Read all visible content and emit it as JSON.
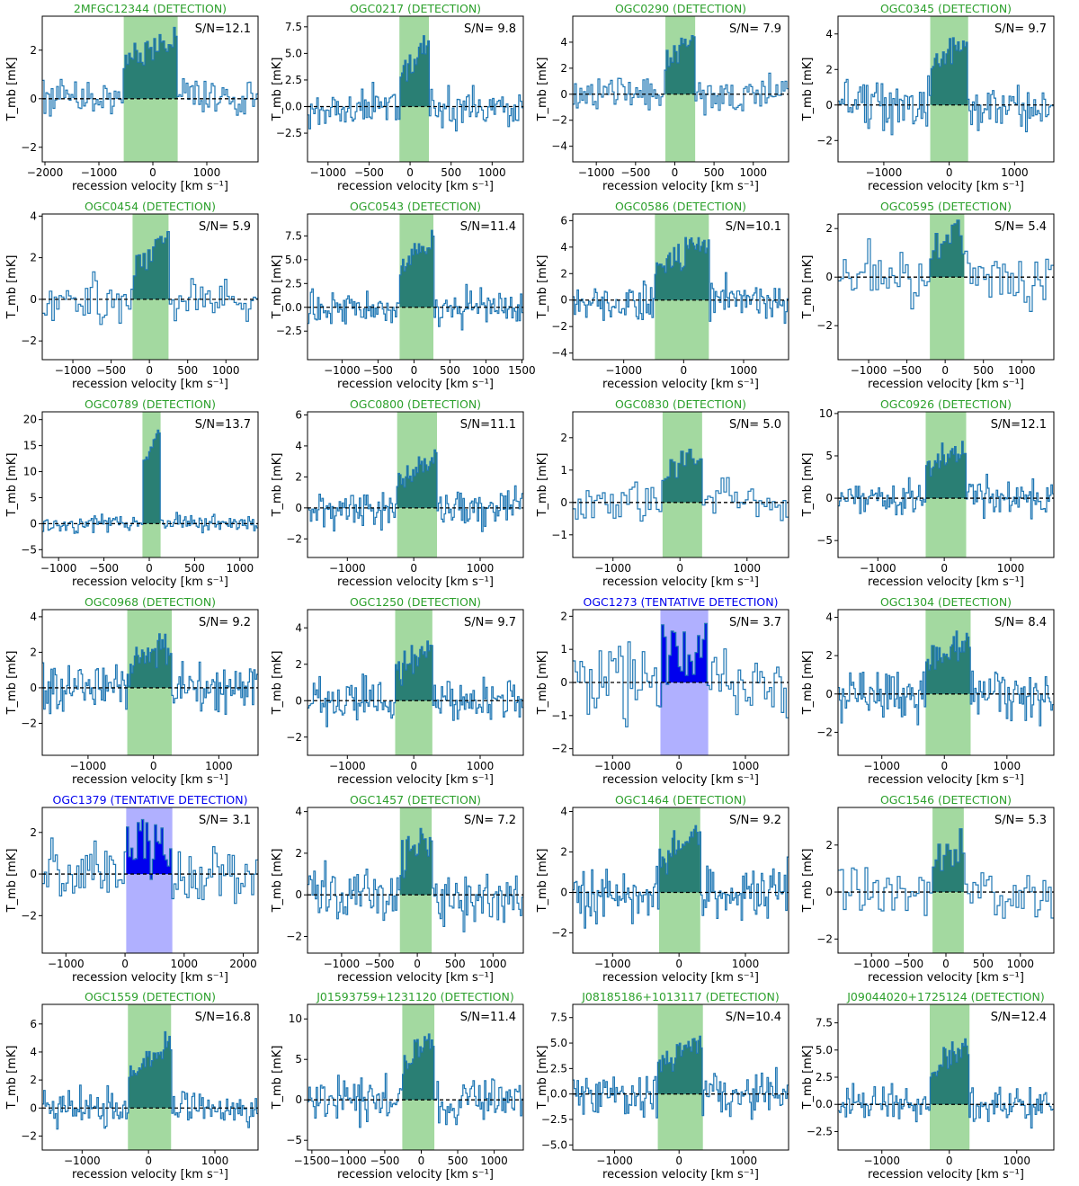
{
  "figure": {
    "axis_ylabel": "T_mb [mK]",
    "axis_xlabel": "recession velocity [km s⁻¹]",
    "colors": {
      "detection_title": "#2ca02c",
      "tentative_title": "#0000ee",
      "detection_window": "#a3d9a0",
      "tentative_window": "#b0b0ff",
      "spectrum": "#1f77b4",
      "detection_fill": "#2a7f74",
      "tentative_fill": "#0000ee",
      "baseline": "#000000"
    }
  },
  "chart_data": [
    {
      "type": "line",
      "title": "2MFGC12344 (DETECTION)",
      "status": "detection",
      "sn_label": "S/N=12.1",
      "xlim": [
        -2050,
        1950
      ],
      "ylim": [
        -2.6,
        3.4
      ],
      "xticks": [
        -2000,
        -1000,
        0,
        1000
      ],
      "yticks": [
        -2,
        0,
        2
      ],
      "window": [
        -540,
        460
      ],
      "peak": 2.6,
      "rms": 0.65,
      "nchan": 120,
      "seed": 11
    },
    {
      "type": "line",
      "title": "OGC0217 (DETECTION)",
      "status": "detection",
      "sn_label": "S/N= 9.8",
      "xlim": [
        -1250,
        1380
      ],
      "ylim": [
        -5.2,
        8.5
      ],
      "xticks": [
        -1000,
        -500,
        0,
        500,
        1000
      ],
      "yticks": [
        -2.5,
        0.0,
        2.5,
        5.0,
        7.5
      ],
      "window": [
        -130,
        230
      ],
      "peak": 6.2,
      "rms": 1.5,
      "nchan": 140,
      "seed": 12
    },
    {
      "type": "line",
      "title": "OGC0290 (DETECTION)",
      "status": "detection",
      "sn_label": "S/N= 7.9",
      "xlim": [
        -1300,
        1450
      ],
      "ylim": [
        -5.2,
        6.0
      ],
      "xticks": [
        -1000,
        -500,
        0,
        500,
        1000
      ],
      "yticks": [
        -4,
        -2,
        0,
        2,
        4
      ],
      "window": [
        -120,
        260
      ],
      "peak": 4.5,
      "rms": 1.1,
      "nchan": 120,
      "seed": 13
    },
    {
      "type": "line",
      "title": "OGC0345 (DETECTION)",
      "status": "detection",
      "sn_label": "S/N= 9.7",
      "xlim": [
        -1700,
        1600
      ],
      "ylim": [
        -3.2,
        5.0
      ],
      "xticks": [
        -1000,
        0,
        1000
      ],
      "yticks": [
        -2,
        0,
        2,
        4
      ],
      "window": [
        -290,
        290
      ],
      "peak": 3.8,
      "rms": 1.0,
      "nchan": 130,
      "seed": 14
    },
    {
      "type": "line",
      "title": "OGC0454 (DETECTION)",
      "status": "detection",
      "sn_label": "S/N= 5.9",
      "xlim": [
        -1400,
        1420
      ],
      "ylim": [
        -2.9,
        4.1
      ],
      "xticks": [
        -1000,
        -500,
        0,
        500,
        1000
      ],
      "yticks": [
        -2,
        0,
        2,
        4
      ],
      "window": [
        -220,
        250
      ],
      "peak": 3.0,
      "rms": 0.9,
      "nchan": 90,
      "seed": 21
    },
    {
      "type": "line",
      "title": "OGC0543 (DETECTION)",
      "status": "detection",
      "sn_label": "S/N=11.4",
      "xlim": [
        -1480,
        1520
      ],
      "ylim": [
        -5.5,
        9.8
      ],
      "xticks": [
        -1000,
        -500,
        0,
        500,
        1000,
        1500
      ],
      "yticks": [
        -2.5,
        0.0,
        2.5,
        5.0,
        7.5
      ],
      "window": [
        -200,
        270
      ],
      "peak": 7.2,
      "rms": 1.5,
      "nchan": 150,
      "seed": 22
    },
    {
      "type": "line",
      "title": "OGC0586 (DETECTION)",
      "status": "detection",
      "sn_label": "S/N=10.1",
      "xlim": [
        -1850,
        1750
      ],
      "ylim": [
        -4.5,
        6.5
      ],
      "xticks": [
        -1000,
        0,
        1000
      ],
      "yticks": [
        -4,
        -2,
        0,
        2,
        4,
        6
      ],
      "window": [
        -480,
        420
      ],
      "peak": 4.4,
      "rms": 1.2,
      "nchan": 150,
      "seed": 23
    },
    {
      "type": "line",
      "title": "OGC0595 (DETECTION)",
      "status": "detection",
      "sn_label": "S/N= 5.4",
      "xlim": [
        -1400,
        1420
      ],
      "ylim": [
        -3.4,
        2.6
      ],
      "xticks": [
        -1000,
        -500,
        0,
        500,
        1000
      ],
      "yticks": [
        -2,
        0,
        2
      ],
      "window": [
        -200,
        250
      ],
      "peak": 1.9,
      "rms": 0.9,
      "nchan": 80,
      "seed": 24
    },
    {
      "type": "line",
      "title": "OGC0789 (DETECTION)",
      "status": "detection",
      "sn_label": "S/N=13.7",
      "xlim": [
        -1180,
        1200
      ],
      "ylim": [
        -6.5,
        21.5
      ],
      "xticks": [
        -1000,
        -500,
        0,
        500,
        1000
      ],
      "yticks": [
        -5,
        0,
        5,
        10,
        15,
        20
      ],
      "window": [
        -75,
        125
      ],
      "peak": 19.0,
      "rms": 1.3,
      "nchan": 150,
      "seed": 31
    },
    {
      "type": "line",
      "title": "OGC0800 (DETECTION)",
      "status": "detection",
      "sn_label": "S/N=11.1",
      "xlim": [
        -1600,
        1650
      ],
      "ylim": [
        -3.2,
        6.2
      ],
      "xticks": [
        -1000,
        0,
        1000
      ],
      "yticks": [
        -2,
        0,
        2,
        4,
        6
      ],
      "window": [
        -250,
        350
      ],
      "peak": 3.4,
      "rms": 1.0,
      "nchan": 150,
      "seed": 32
    },
    {
      "type": "line",
      "title": "OGC0830 (DETECTION)",
      "status": "detection",
      "sn_label": "S/N= 5.0",
      "xlim": [
        -1600,
        1620
      ],
      "ylim": [
        -1.7,
        2.8
      ],
      "xticks": [
        -1000,
        0,
        1000
      ],
      "yticks": [
        -1,
        0,
        1,
        2
      ],
      "window": [
        -260,
        330
      ],
      "peak": 1.4,
      "rms": 0.5,
      "nchan": 80,
      "seed": 33
    },
    {
      "type": "line",
      "title": "OGC0926 (DETECTION)",
      "status": "detection",
      "sn_label": "S/N=12.1",
      "xlim": [
        -1600,
        1650
      ],
      "ylim": [
        -7.0,
        10.2
      ],
      "xticks": [
        -1000,
        0,
        1000
      ],
      "yticks": [
        -5,
        0,
        5,
        10
      ],
      "window": [
        -280,
        330
      ],
      "peak": 6.5,
      "rms": 1.6,
      "nchan": 150,
      "seed": 34
    },
    {
      "type": "line",
      "title": "OGC0968 (DETECTION)",
      "status": "detection",
      "sn_label": "S/N= 9.2",
      "xlim": [
        -1700,
        1600
      ],
      "ylim": [
        -3.8,
        4.4
      ],
      "xticks": [
        -1000,
        0,
        1000
      ],
      "yticks": [
        -2,
        0,
        2,
        4
      ],
      "window": [
        -400,
        280
      ],
      "peak": 2.6,
      "rms": 1.1,
      "nchan": 150,
      "seed": 41
    },
    {
      "type": "line",
      "title": "OGC1250 (DETECTION)",
      "status": "detection",
      "sn_label": "S/N= 9.7",
      "xlim": [
        -1600,
        1650
      ],
      "ylim": [
        -3.0,
        5.0
      ],
      "xticks": [
        -1000,
        0,
        1000
      ],
      "yticks": [
        -2,
        0,
        2,
        4
      ],
      "window": [
        -280,
        280
      ],
      "peak": 3.2,
      "rms": 1.0,
      "nchan": 150,
      "seed": 42
    },
    {
      "type": "line",
      "title": "OGC1273 (TENTATIVE DETECTION)",
      "status": "tentative",
      "sn_label": "S/N= 3.7",
      "xlim": [
        -1600,
        1650
      ],
      "ylim": [
        -2.2,
        2.2
      ],
      "xticks": [
        -1000,
        0,
        1000
      ],
      "yticks": [
        -2,
        -1,
        0,
        1,
        2
      ],
      "window": [
        -280,
        440
      ],
      "peak": 1.0,
      "rms": 0.9,
      "nchan": 90,
      "seed": 43
    },
    {
      "type": "line",
      "title": "OGC1304 (DETECTION)",
      "status": "detection",
      "sn_label": "S/N= 8.4",
      "xlim": [
        -1700,
        1750
      ],
      "ylim": [
        -3.2,
        4.4
      ],
      "xticks": [
        -1000,
        0,
        1000
      ],
      "yticks": [
        -2,
        0,
        2,
        4
      ],
      "window": [
        -300,
        420
      ],
      "peak": 2.7,
      "rms": 1.0,
      "nchan": 150,
      "seed": 44
    },
    {
      "type": "line",
      "title": "OGC1379 (TENTATIVE DETECTION)",
      "status": "tentative",
      "sn_label": "S/N= 3.1",
      "xlim": [
        -1400,
        2250
      ],
      "ylim": [
        -3.8,
        3.2
      ],
      "xticks": [
        -1000,
        0,
        1000,
        2000
      ],
      "yticks": [
        -2,
        0,
        2
      ],
      "window": [
        20,
        800
      ],
      "peak": 1.3,
      "rms": 1.1,
      "nchan": 100,
      "seed": 51
    },
    {
      "type": "line",
      "title": "OGC1457 (DETECTION)",
      "status": "detection",
      "sn_label": "S/N= 7.2",
      "xlim": [
        -1450,
        1400
      ],
      "ylim": [
        -2.8,
        4.2
      ],
      "xticks": [
        -1000,
        -500,
        0,
        500,
        1000
      ],
      "yticks": [
        -2,
        0,
        2,
        4
      ],
      "window": [
        -230,
        190
      ],
      "peak": 2.8,
      "rms": 1.0,
      "nchan": 140,
      "seed": 52
    },
    {
      "type": "line",
      "title": "OGC1464 (DETECTION)",
      "status": "detection",
      "sn_label": "S/N= 9.2",
      "xlim": [
        -1600,
        1650
      ],
      "ylim": [
        -3.0,
        4.2
      ],
      "xticks": [
        -1000,
        0,
        1000
      ],
      "yticks": [
        -2,
        0,
        2,
        4
      ],
      "window": [
        -300,
        320
      ],
      "peak": 2.8,
      "rms": 1.1,
      "nchan": 150,
      "seed": 53
    },
    {
      "type": "line",
      "title": "OGC1546 (DETECTION)",
      "status": "detection",
      "sn_label": "S/N= 5.3",
      "xlim": [
        -1450,
        1450
      ],
      "ylim": [
        -2.6,
        3.6
      ],
      "xticks": [
        -1000,
        -500,
        0,
        500,
        1000
      ],
      "yticks": [
        -2,
        0,
        2
      ],
      "window": [
        -180,
        240
      ],
      "peak": 1.9,
      "rms": 0.9,
      "nchan": 80,
      "seed": 54
    },
    {
      "type": "line",
      "title": "OGC1559 (DETECTION)",
      "status": "detection",
      "sn_label": "S/N=16.8",
      "xlim": [
        -1600,
        1650
      ],
      "ylim": [
        -3.0,
        7.4
      ],
      "xticks": [
        -1000,
        0,
        1000
      ],
      "yticks": [
        -2,
        0,
        2,
        4,
        6
      ],
      "window": [
        -310,
        340
      ],
      "peak": 4.6,
      "rms": 1.0,
      "nchan": 150,
      "seed": 61
    },
    {
      "type": "line",
      "title": "J01593759+1231120 (DETECTION)",
      "status": "detection",
      "sn_label": "S/N=11.4",
      "xlim": [
        -1560,
        1400
      ],
      "ylim": [
        -6.2,
        11.8
      ],
      "xticks": [
        -1500,
        -1000,
        -500,
        0,
        500,
        1000
      ],
      "yticks": [
        -5,
        0,
        5,
        10
      ],
      "window": [
        -260,
        180
      ],
      "peak": 7.5,
      "rms": 2.0,
      "nchan": 150,
      "seed": 62
    },
    {
      "type": "line",
      "title": "J08185186+1013117 (DETECTION)",
      "status": "detection",
      "sn_label": "S/N=10.4",
      "xlim": [
        -1650,
        1700
      ],
      "ylim": [
        -5.5,
        8.8
      ],
      "xticks": [
        -1000,
        0,
        1000
      ],
      "yticks": [
        -5.0,
        -2.5,
        0.0,
        2.5,
        5.0,
        7.5
      ],
      "window": [
        -330,
        370
      ],
      "peak": 5.5,
      "rms": 1.7,
      "nchan": 150,
      "seed": 63
    },
    {
      "type": "line",
      "title": "J09044020+1725124 (DETECTION)",
      "status": "detection",
      "sn_label": "S/N=12.4",
      "xlim": [
        -1650,
        1550
      ],
      "ylim": [
        -4.2,
        9.2
      ],
      "xticks": [
        -1000,
        0,
        1000
      ],
      "yticks": [
        -2.5,
        0.0,
        2.5,
        5.0,
        7.5
      ],
      "window": [
        -290,
        300
      ],
      "peak": 5.6,
      "rms": 1.3,
      "nchan": 150,
      "seed": 64
    }
  ]
}
